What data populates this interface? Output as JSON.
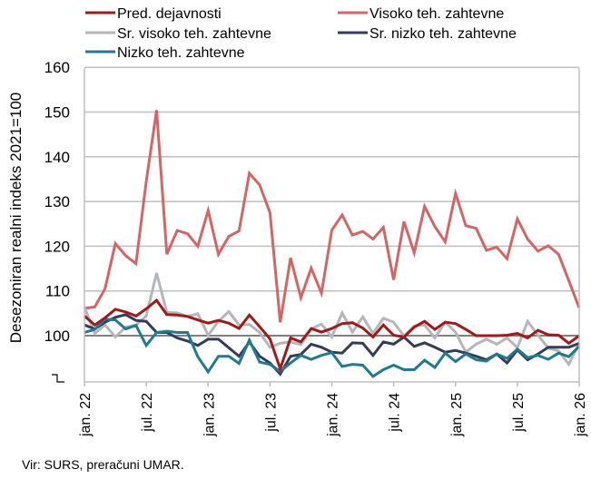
{
  "chart_data": {
    "type": "line",
    "title": "",
    "xlabel": "",
    "ylabel": "Desezoniran realni indeks 2021=100",
    "ylim": [
      90,
      160
    ],
    "yticks": [
      100,
      110,
      120,
      130,
      140,
      150,
      160
    ],
    "ytick_labels": [
      "100",
      "110",
      "120",
      "130",
      "140",
      "150",
      "160"
    ],
    "reference_line": 100,
    "grid": true,
    "legend_position": "top",
    "x_start": "2022-01",
    "x_end": "2026-01",
    "x_tick_months": [
      0,
      6,
      12,
      18,
      24,
      30,
      36,
      42,
      48
    ],
    "x_tick_labels": [
      "jan. 22",
      "jul. 22",
      "jan. 23",
      "jul. 23",
      "jan. 24",
      "jul. 24",
      "jan. 25",
      "jul. 25",
      "jan. 26"
    ],
    "series": [
      {
        "name": "Pred. dejavnosti",
        "color": "#A31919",
        "values": [
          104.4,
          102.4,
          104.0,
          105.9,
          105.3,
          104.4,
          106.0,
          107.9,
          104.7,
          104.6,
          104.3,
          103.5,
          102.8,
          103.4,
          102.8,
          101.6,
          104.6,
          102.0,
          99.3,
          92.6,
          99.5,
          98.6,
          101.6,
          100.8,
          101.6,
          102.7,
          102.9,
          101.7,
          99.7,
          102.4,
          100.1,
          99.7,
          101.9,
          103.2,
          101.4,
          103.0,
          102.7,
          101.4,
          100.0,
          100.0,
          100.0,
          100.1,
          100.5,
          99.5,
          101.2,
          100.2,
          100.1,
          98.3,
          100.0
        ]
      },
      {
        "name": "Visoko teh. zahtevne",
        "color": "#D66464",
        "values": [
          106.1,
          106.4,
          110.5,
          120.6,
          117.9,
          116.1,
          134.5,
          150.4,
          118.2,
          123.5,
          122.8,
          120.0,
          128.0,
          118.2,
          122.2,
          123.4,
          136.3,
          133.7,
          127.5,
          103.0,
          117.4,
          108.5,
          115.1,
          109.5,
          123.6,
          127.0,
          122.5,
          123.3,
          121.6,
          124.2,
          112.5,
          125.5,
          118.5,
          128.9,
          124.4,
          121.0,
          131.8,
          124.6,
          124.0,
          119.1,
          119.8,
          117.2,
          126.1,
          121.6,
          118.9,
          120.1,
          118.2,
          112.3,
          106.2
        ]
      },
      {
        "name": "Sr. visoko teh. zahtevne",
        "color": "#B3B7BC",
        "values": [
          106.4,
          100.5,
          102.4,
          99.7,
          101.9,
          102.4,
          104.4,
          114.0,
          105.2,
          105.1,
          104.3,
          104.9,
          100.1,
          103.2,
          105.4,
          102.4,
          102.5,
          100.7,
          97.4,
          98.3,
          98.6,
          98.0,
          101.5,
          102.6,
          99.7,
          105.1,
          100.8,
          104.2,
          100.5,
          103.9,
          103.0,
          99.9,
          102.2,
          102.4,
          99.5,
          103.0,
          100.8,
          96.3,
          98.1,
          99.2,
          98.1,
          99.5,
          97.3,
          103.2,
          100.1,
          97.2,
          96.6,
          93.6,
          98.3
        ]
      },
      {
        "name": "Sr. nizko teh. zahtevne",
        "color": "#333D5B",
        "values": [
          102.4,
          101.5,
          103.0,
          104.1,
          104.7,
          103.4,
          103.2,
          100.7,
          100.7,
          99.5,
          98.8,
          97.8,
          99.2,
          99.2,
          97.3,
          95.4,
          98.6,
          95.4,
          93.9,
          91.4,
          95.4,
          95.8,
          98.1,
          97.4,
          96.3,
          96.1,
          98.4,
          98.3,
          95.6,
          98.6,
          98.1,
          99.7,
          97.6,
          98.4,
          97.4,
          96.3,
          96.7,
          96.1,
          95.4,
          94.6,
          95.9,
          93.9,
          96.8,
          94.6,
          95.9,
          97.4,
          97.4,
          97.4,
          98.3
        ]
      },
      {
        "name": "Nizko teh. zahtevne",
        "color": "#1F7A92",
        "values": [
          100.7,
          101.4,
          103.7,
          103.5,
          101.5,
          102.3,
          97.8,
          100.7,
          101.0,
          100.7,
          100.7,
          95.3,
          91.9,
          95.4,
          95.4,
          93.8,
          99.0,
          94.1,
          93.6,
          92.0,
          93.9,
          95.6,
          94.7,
          95.6,
          96.2,
          93.1,
          93.6,
          93.4,
          90.9,
          92.4,
          93.4,
          92.4,
          92.4,
          94.5,
          92.9,
          96.1,
          94.2,
          95.9,
          94.6,
          94.3,
          95.9,
          94.9,
          97.0,
          95.1,
          95.6,
          94.7,
          96.1,
          95.3,
          97.6
        ]
      }
    ]
  },
  "footer": {
    "source": "Vir: SURS, preračuni UMAR."
  }
}
